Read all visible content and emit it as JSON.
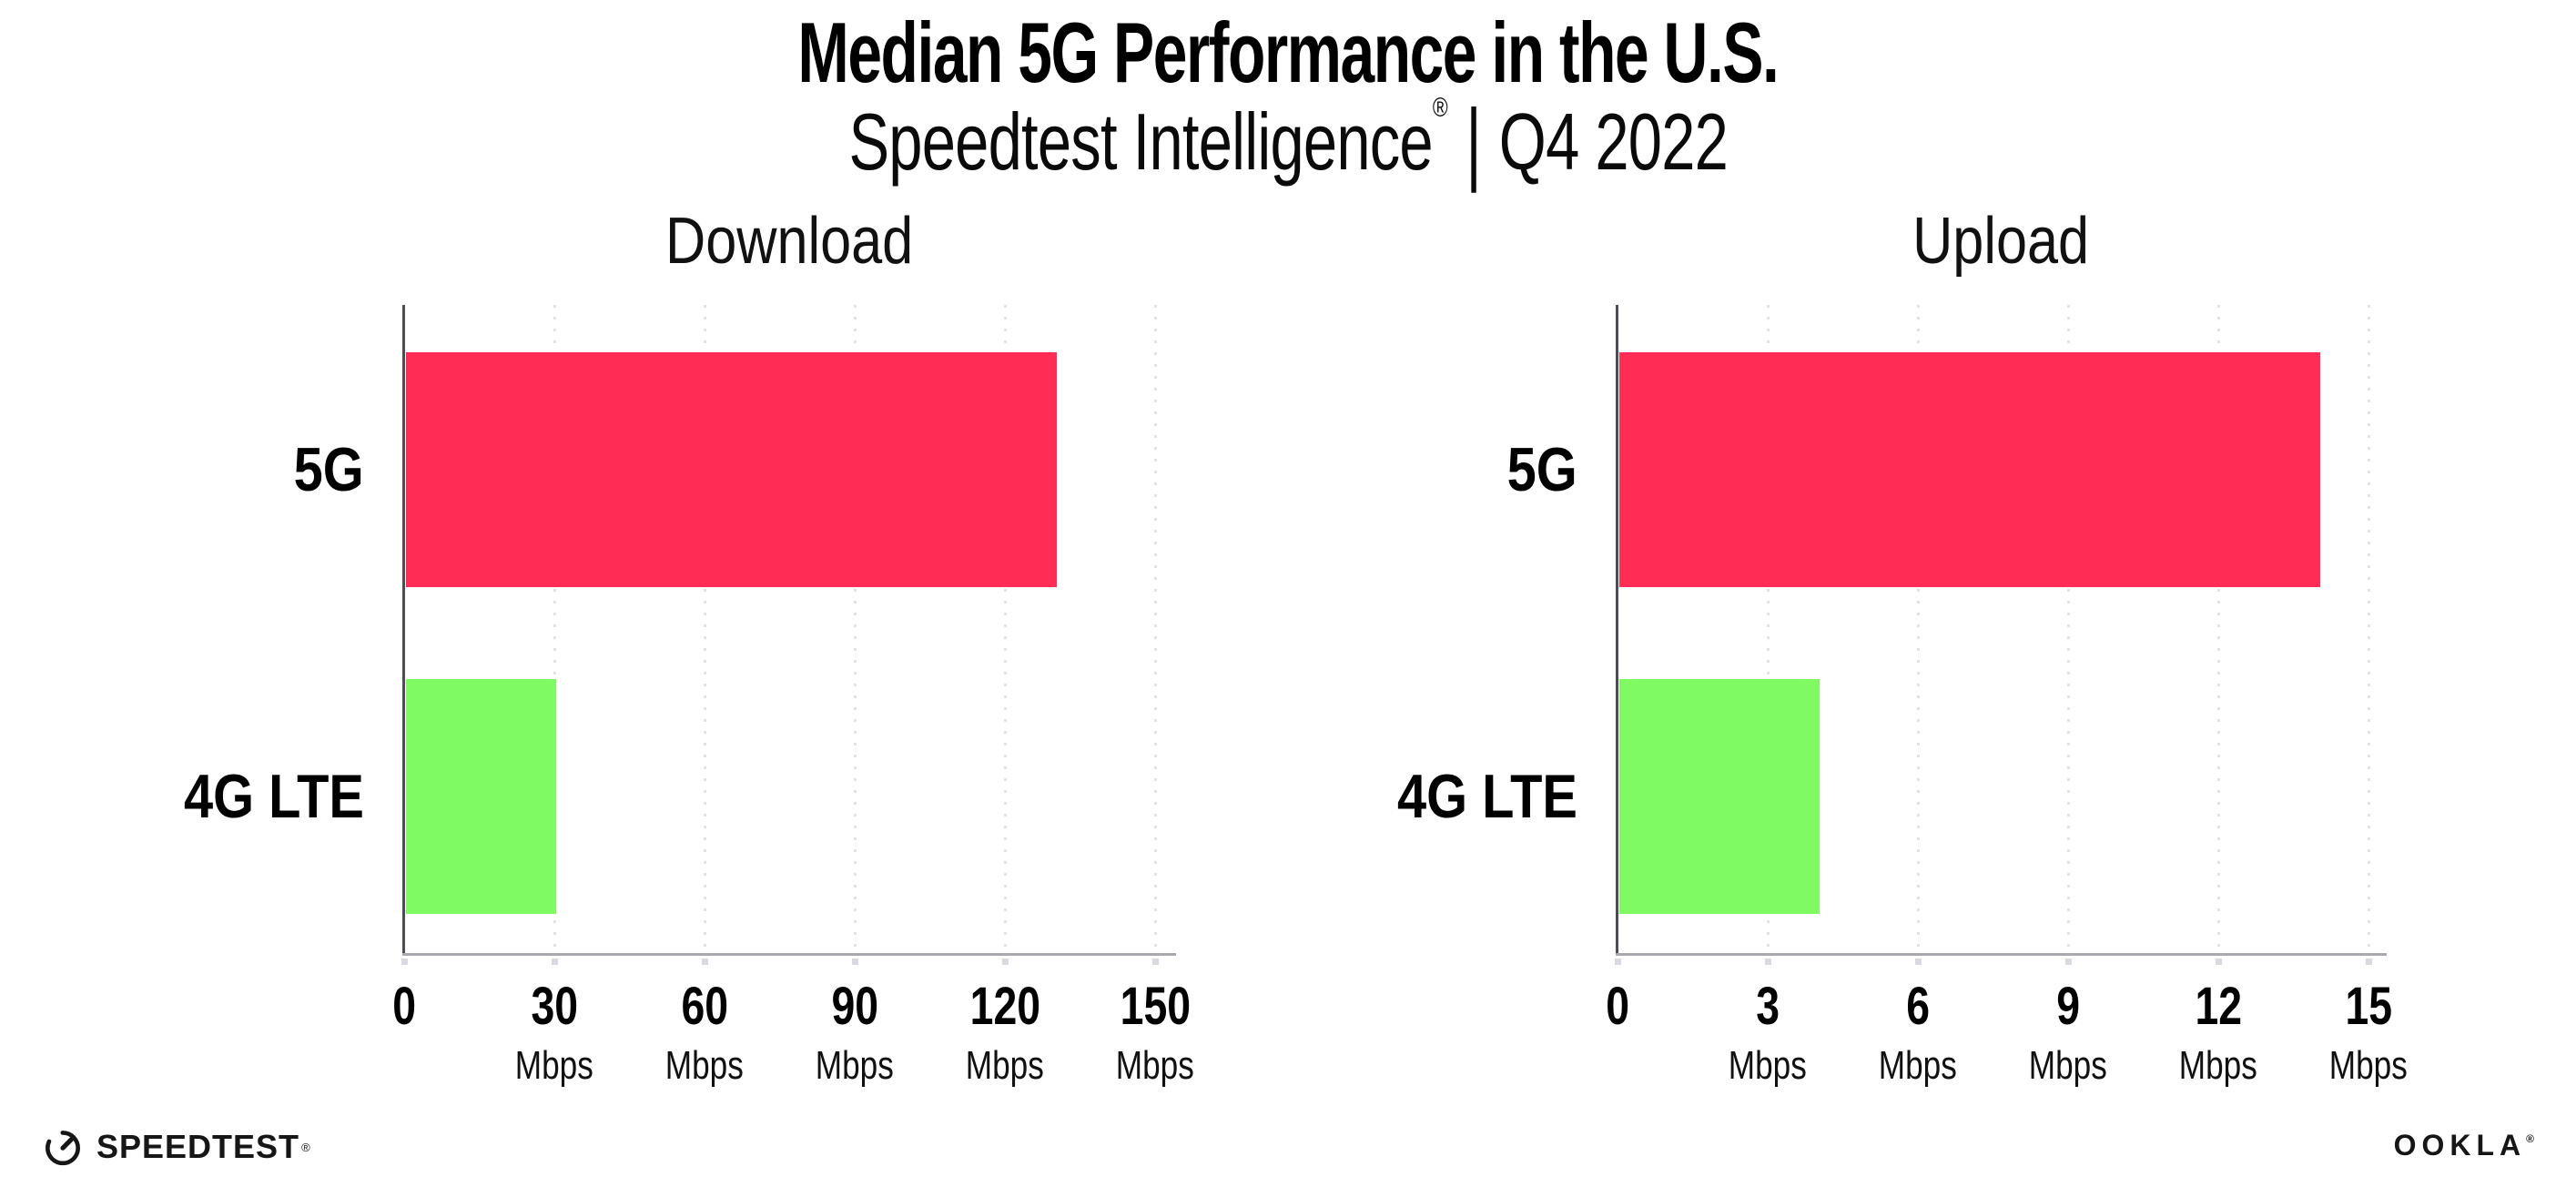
{
  "header": {
    "title": "Median 5G Performance in the U.S.",
    "subtitle": {
      "brand": "Speedtest Intelligence",
      "registered_mark": "®",
      "separator": "|",
      "period": "Q4 2022"
    }
  },
  "chart_data": [
    {
      "type": "bar",
      "orientation": "horizontal",
      "title": "Download",
      "categories": [
        "5G",
        "4G LTE"
      ],
      "values": [
        130,
        30
      ],
      "unit": "Mbps",
      "xlim": [
        0,
        150
      ],
      "xticks": [
        0,
        30,
        60,
        90,
        120,
        150
      ],
      "bar_colors": [
        "#ff2d55",
        "#80fa62"
      ],
      "grid": "dotted-vertical",
      "legend": "none"
    },
    {
      "type": "bar",
      "orientation": "horizontal",
      "title": "Upload",
      "categories": [
        "5G",
        "4G LTE"
      ],
      "values": [
        14,
        4
      ],
      "unit": "Mbps",
      "xlim": [
        0,
        15
      ],
      "xticks": [
        0,
        3,
        6,
        9,
        12,
        15
      ],
      "bar_colors": [
        "#ff2d55",
        "#80fa62"
      ],
      "grid": "dotted-vertical",
      "legend": "none"
    }
  ],
  "footer": {
    "speedtest_label": "SPEEDTEST",
    "speedtest_mark": "®",
    "ookla_label": "OOKLA",
    "ookla_mark": "®"
  },
  "colors": {
    "bar_5g": "#ff2d55",
    "bar_4g_lte": "#80fa62",
    "gridline": "#e2e2ec",
    "y_axis_line": "#4d4d58",
    "x_axis_line": "#a8a8ae",
    "text": "#000000",
    "background": "#ffffff"
  }
}
